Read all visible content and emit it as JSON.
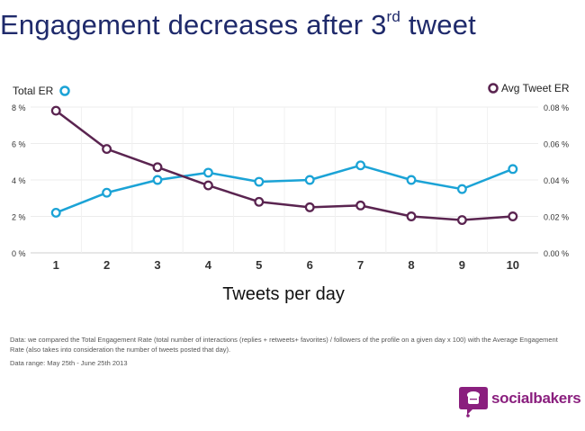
{
  "page": {
    "title": "Engagement decreases after 3",
    "title_sup": "rd",
    "title_suffix": " tweet",
    "note": "Data: we compared the Total Engagement Rate (total number of interactions (replies + retweets+ favorites) / followers of the profile on a given day x 100) with the Average Engagement Rate (also takes into consideration the number of tweets posted that day).",
    "range": "Data range: May 25th - June 25th 2013",
    "logo": "socialbakers",
    "title_color": "#1f2a6b",
    "logo_color": "#8a1f7e"
  },
  "chart_data": {
    "type": "line",
    "xlabel": "Tweets per day",
    "x": [
      1,
      2,
      3,
      4,
      5,
      6,
      7,
      8,
      9,
      10
    ],
    "xlim": [
      0.5,
      10.5
    ],
    "y_left": {
      "label": "Total ER",
      "ticks": [
        "0 %",
        "2 %",
        "4 %",
        "6 %",
        "8 %"
      ],
      "lim": [
        0,
        8
      ]
    },
    "y_right": {
      "label": "Avg Tweet ER",
      "ticks": [
        "0.00 %",
        "0.02 %",
        "0.04 %",
        "0.06 %",
        "0.08 %"
      ],
      "lim": [
        0,
        0.08
      ]
    },
    "grid": true,
    "series": [
      {
        "name": "Total ER",
        "axis": "left",
        "color": "#1ba3d6",
        "values": [
          2.2,
          3.3,
          4.0,
          4.4,
          3.9,
          4.0,
          4.8,
          4.0,
          3.5,
          4.6
        ]
      },
      {
        "name": "Avg Tweet ER",
        "axis": "right",
        "color": "#5a2450",
        "values": [
          0.078,
          0.057,
          0.047,
          0.037,
          0.028,
          0.025,
          0.026,
          0.02,
          0.018,
          0.02
        ]
      }
    ]
  }
}
